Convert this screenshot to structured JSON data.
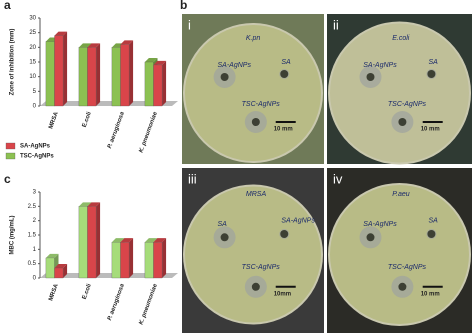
{
  "chart_data": [
    {
      "type": "bar3d",
      "panel_label": "a",
      "y_label": "Zone of inhibition (mm)",
      "categories": [
        "MRSA",
        "E.coli",
        "P. aeruginosa",
        "K. pneumoniae"
      ],
      "series": [
        {
          "name": "SA-AgNPs",
          "color": "#d9454a",
          "values": [
            24,
            20,
            21,
            14
          ]
        },
        {
          "name": "TSC-AgNPs",
          "color": "#8cc152",
          "values": [
            22,
            20,
            20,
            15
          ]
        }
      ],
      "ylim": [
        0,
        30
      ],
      "yticks": [
        0,
        5,
        10,
        15,
        20,
        25,
        30
      ],
      "legend": "below"
    },
    {
      "type": "bar3d",
      "panel_label": "c",
      "y_label": "MBC (mg/mL)",
      "categories": [
        "MRSA",
        "E.coli",
        "P. aeruginosa",
        "K. pneumoniae"
      ],
      "series": [
        {
          "color": "#d9454a",
          "values": [
            0.35,
            2.5,
            1.25,
            1.25
          ]
        },
        {
          "color": "#a6dc7a",
          "values": [
            0.7,
            2.5,
            1.25,
            1.25
          ]
        }
      ],
      "ylim": [
        0,
        3
      ],
      "yticks": [
        0,
        0.5,
        1,
        1.5,
        2,
        2.5,
        3
      ]
    }
  ],
  "photos": {
    "panel_label": "b",
    "plates": [
      {
        "numeral": "i",
        "texts": [
          "K.pn",
          "SA-AgNPs",
          "SA",
          "TSC-AgNPs"
        ],
        "scale": "10 mm"
      },
      {
        "numeral": "ii",
        "texts": [
          "E.coli",
          "SA-AgNPs",
          "SA",
          "TSC-AgNPs"
        ],
        "scale": "10 mm"
      },
      {
        "numeral": "iii",
        "texts": [
          "MRSA",
          "SA",
          "SA-AgNPs",
          "TSC-AgNPs"
        ],
        "scale": "10mm"
      },
      {
        "numeral": "iv",
        "texts": [
          "P.aeu",
          "SA-AgNPs",
          "SA",
          "TSC-AgNPs"
        ],
        "scale": "10 mm"
      }
    ]
  }
}
